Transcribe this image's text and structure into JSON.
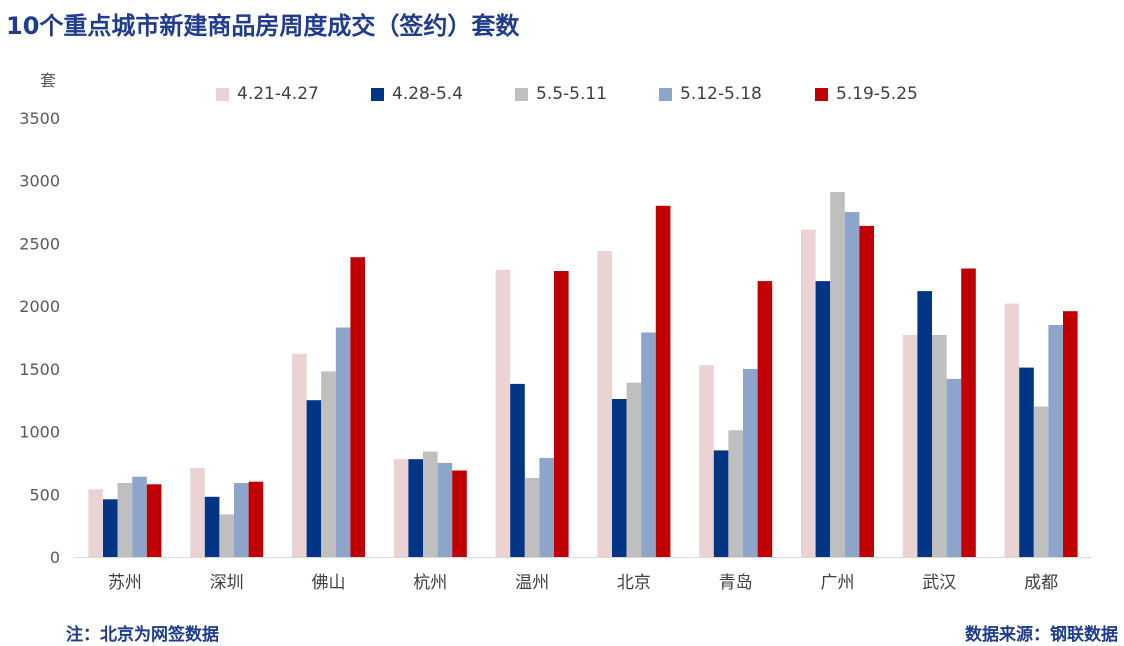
{
  "title": "10个重点城市新建商品房周度成交（签约）套数",
  "footnote": "注：北京为网签数据",
  "source": "数据来源：钢联数据",
  "colors": [
    "#ebd3d3",
    "#003585",
    "#bfbfbf",
    "#8ea5cb",
    "#c00000"
  ],
  "chart_data": {
    "type": "bar",
    "ylabel": "套",
    "ylim": [
      0,
      3500
    ],
    "yticks": [
      0,
      500,
      1000,
      1500,
      2000,
      2500,
      3000,
      3500
    ],
    "grid": false,
    "legend_position": "top",
    "categories": [
      "苏州",
      "深圳",
      "佛山",
      "杭州",
      "温州",
      "北京",
      "青岛",
      "广州",
      "武汉",
      "成都"
    ],
    "series": [
      {
        "name": "4.21-4.27",
        "values": [
          540,
          710,
          1620,
          780,
          2290,
          2440,
          1530,
          2610,
          1770,
          2020
        ]
      },
      {
        "name": "4.28-5.4",
        "values": [
          460,
          480,
          1250,
          780,
          1380,
          1260,
          850,
          2200,
          2120,
          1510
        ]
      },
      {
        "name": "5.5-5.11",
        "values": [
          590,
          340,
          1480,
          840,
          630,
          1390,
          1010,
          2910,
          1770,
          1200
        ]
      },
      {
        "name": "5.12-5.18",
        "values": [
          640,
          590,
          1830,
          750,
          790,
          1790,
          1500,
          2750,
          1420,
          1850
        ]
      },
      {
        "name": "5.19-5.25",
        "values": [
          580,
          600,
          2390,
          690,
          2280,
          2800,
          2200,
          2640,
          2300,
          1960
        ]
      }
    ]
  }
}
